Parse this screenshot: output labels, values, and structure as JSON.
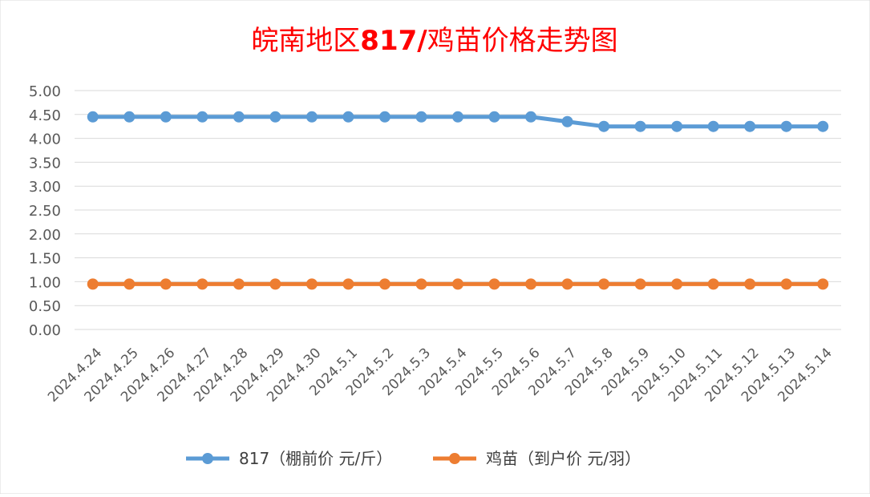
{
  "chart_data": {
    "type": "line",
    "title_parts": {
      "prefix": "皖南地区",
      "bold": "817/",
      "suffix": "鸡苗价格走势图"
    },
    "title_color": "#ff0000",
    "categories": [
      "2024.4.24",
      "2024.4.25",
      "2024.4.26",
      "2024.4.27",
      "2024.4.28",
      "2024.4.29",
      "2024.4.30",
      "2024.5.1",
      "2024.5.2",
      "2024.5.3",
      "2024.5.4",
      "2024.5.5",
      "2024.5.6",
      "2024.5.7",
      "2024.5.8",
      "2024.5.9",
      "2024.5.10",
      "2024.5.11",
      "2024.5.12",
      "2024.5.13",
      "2024.5.14"
    ],
    "y_ticks": [
      "0.00",
      "0.50",
      "1.00",
      "1.50",
      "2.00",
      "2.50",
      "3.00",
      "3.50",
      "4.00",
      "4.50",
      "5.00"
    ],
    "ylim": [
      0,
      5
    ],
    "grid": true,
    "legend_position": "bottom",
    "series": [
      {
        "name": "817（棚前价 元/斤）",
        "color": "#5b9bd5",
        "values": [
          4.45,
          4.45,
          4.45,
          4.45,
          4.45,
          4.45,
          4.45,
          4.45,
          4.45,
          4.45,
          4.45,
          4.45,
          4.45,
          4.35,
          4.25,
          4.25,
          4.25,
          4.25,
          4.25,
          4.25,
          4.25
        ]
      },
      {
        "name": "鸡苗（到户价 元/羽）",
        "color": "#ed7d31",
        "values": [
          0.95,
          0.95,
          0.95,
          0.95,
          0.95,
          0.95,
          0.95,
          0.95,
          0.95,
          0.95,
          0.95,
          0.95,
          0.95,
          0.95,
          0.95,
          0.95,
          0.95,
          0.95,
          0.95,
          0.95,
          0.95
        ]
      }
    ]
  }
}
